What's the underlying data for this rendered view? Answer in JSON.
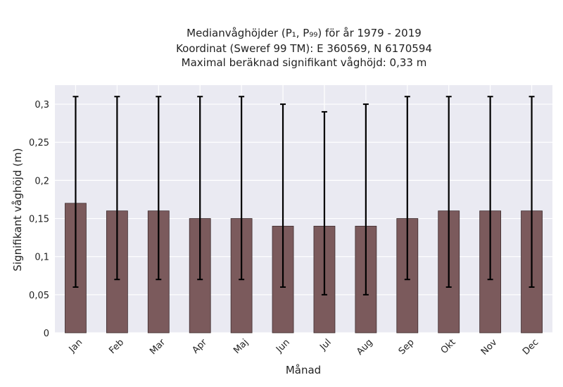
{
  "chart_data": {
    "type": "bar",
    "title_lines": [
      "Medianvåghöjder (P₁, P₉₉) för år 1979 - 2019",
      "Koordinat (Sweref 99 TM): E 360569, N 6170594",
      "Maximal beräknad signifikant våghöjd: 0,33 m"
    ],
    "xlabel": "Månad",
    "ylabel": "Signifikant våghöjd (m)",
    "categories": [
      "Jan",
      "Feb",
      "Mar",
      "Apr",
      "Maj",
      "Jun",
      "Jul",
      "Aug",
      "Sep",
      "Okt",
      "Nov",
      "Dec"
    ],
    "values": [
      0.17,
      0.16,
      0.16,
      0.15,
      0.15,
      0.14,
      0.14,
      0.14,
      0.15,
      0.16,
      0.16,
      0.16
    ],
    "p1": [
      0.06,
      0.07,
      0.07,
      0.07,
      0.07,
      0.06,
      0.05,
      0.05,
      0.07,
      0.06,
      0.07,
      0.06
    ],
    "p99": [
      0.31,
      0.31,
      0.31,
      0.31,
      0.31,
      0.3,
      0.29,
      0.3,
      0.31,
      0.31,
      0.31,
      0.31
    ],
    "ylim": [
      0,
      0.325
    ],
    "yticks": [
      0,
      0.05,
      0.1,
      0.15,
      0.2,
      0.25,
      0.3
    ],
    "ytick_labels": [
      "0",
      "0,05",
      "0,1",
      "0,15",
      "0,2",
      "0,25",
      "0,3"
    ],
    "grid": true,
    "colors": {
      "bar": "#7b5a5c",
      "bar_edge": "#3d2c2e",
      "error_bar": "#000000",
      "plot_background": "#eaeaf2",
      "grid": "#ffffff"
    }
  }
}
